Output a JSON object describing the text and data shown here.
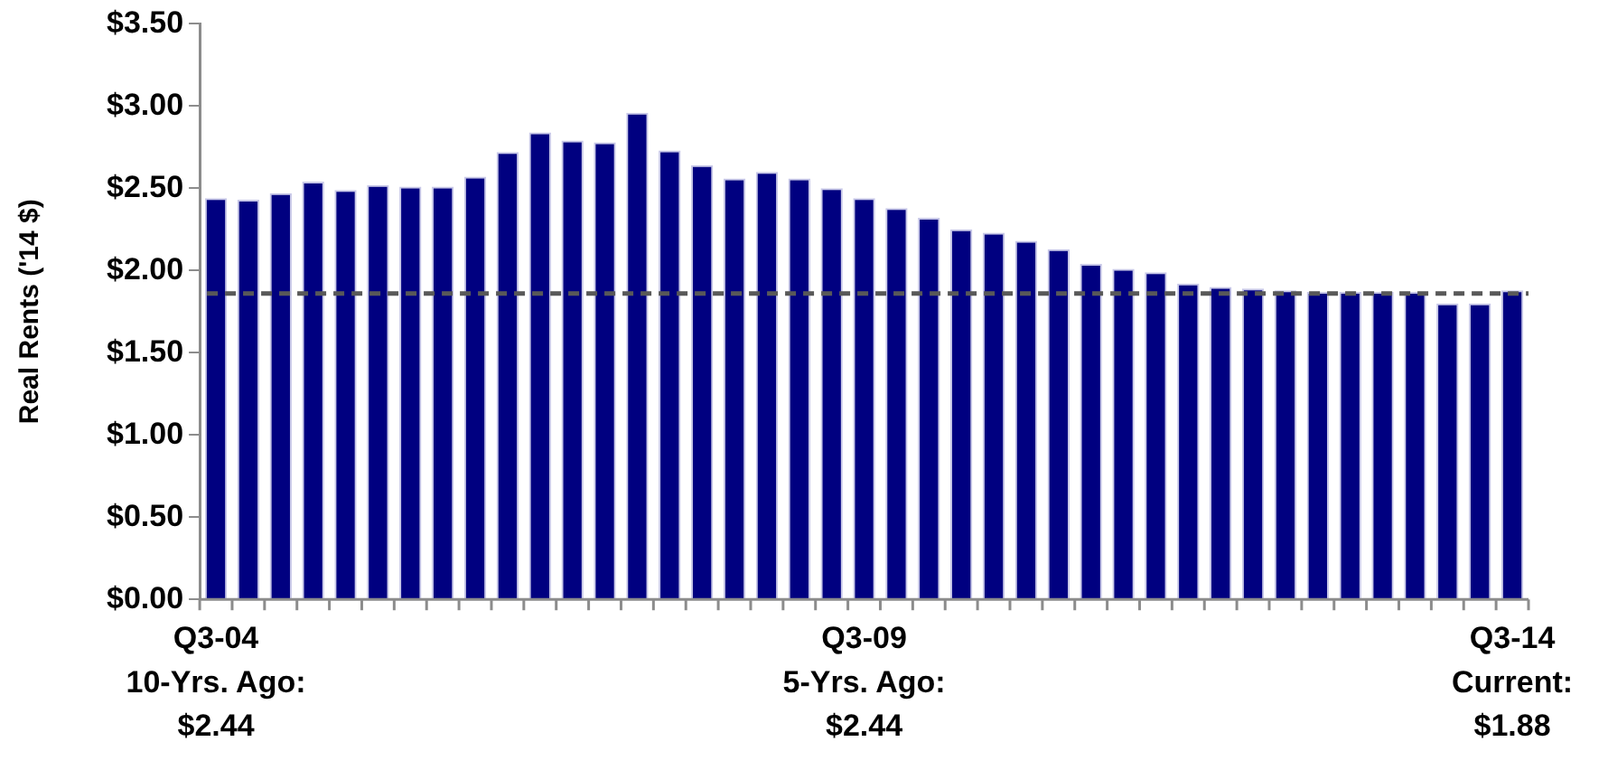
{
  "chart_data": {
    "type": "bar",
    "ylabel": "Real Rents ('14 $)",
    "categories": [
      "Q3-04",
      null,
      null,
      null,
      null,
      null,
      null,
      null,
      null,
      null,
      null,
      null,
      null,
      null,
      null,
      null,
      null,
      null,
      null,
      null,
      "Q3-09",
      null,
      null,
      null,
      null,
      null,
      null,
      null,
      null,
      null,
      null,
      null,
      null,
      null,
      null,
      null,
      null,
      null,
      null,
      null,
      "Q3-14"
    ],
    "values": [
      2.44,
      2.43,
      2.47,
      2.54,
      2.49,
      2.52,
      2.51,
      2.51,
      2.57,
      2.72,
      2.84,
      2.79,
      2.78,
      2.96,
      2.73,
      2.64,
      2.56,
      2.6,
      2.56,
      2.5,
      2.44,
      2.38,
      2.32,
      2.25,
      2.23,
      2.18,
      2.13,
      2.04,
      2.01,
      1.99,
      1.92,
      1.9,
      1.89,
      1.88,
      1.87,
      1.87,
      1.87,
      1.87,
      1.8,
      1.8,
      1.88
    ],
    "color": "#000080",
    "ylim": [
      0,
      3.5
    ],
    "yticks": [
      {
        "value": 0,
        "label": "$0.00"
      },
      {
        "value": 0.5,
        "label": "$0.50"
      },
      {
        "value": 1,
        "label": "$1.00"
      },
      {
        "value": 1.5,
        "label": "$1.50"
      },
      {
        "value": 2,
        "label": "$2.00"
      },
      {
        "value": 2.5,
        "label": "$2.50"
      },
      {
        "value": 3,
        "label": "$3.00"
      },
      {
        "value": 3.5,
        "label": "$3.50"
      }
    ],
    "grid": false,
    "legend": false,
    "ref_lines": [
      {
        "axis": "y",
        "value": 1.86,
        "color": "#595959",
        "line_style": "dashed"
      }
    ],
    "annotations": [
      "10-Yrs. Ago:\n$2.44",
      "5-Yrs. Ago:\n$2.44",
      "Current:\n$1.88"
    ]
  }
}
